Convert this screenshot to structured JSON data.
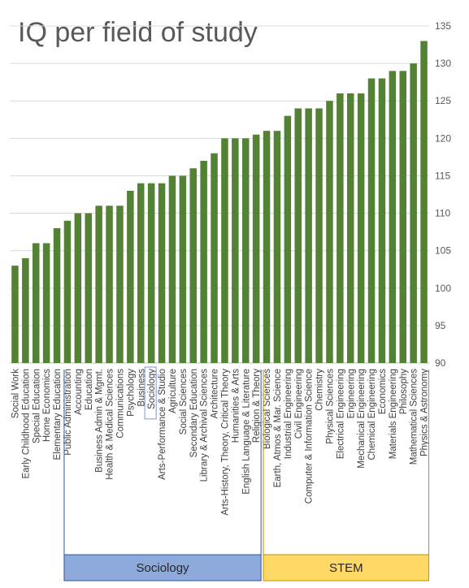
{
  "chart_data": {
    "type": "bar",
    "title": "IQ per field of study",
    "xlabel": "",
    "ylabel": "",
    "ylim": [
      90,
      135
    ],
    "yticks": [
      90,
      95,
      100,
      105,
      110,
      115,
      120,
      125,
      130,
      135
    ],
    "y_axis_position": "right",
    "grid": true,
    "bar_color": "#548235",
    "categories": [
      "Social Work",
      "Early Childhood Education",
      "Special Education",
      "Home Economics",
      "Elementary Education",
      "Public Administration",
      "Accounting",
      "Education",
      "Business Admin & Mgmt.",
      "Health & Medical Sciences",
      "Communications",
      "Psychology",
      "Business",
      "Sociology",
      "Arts-Performance & Studio",
      "Agriculture",
      "Social Sciences",
      "Secondary Education",
      "Library & Archival Sciences",
      "Architecture",
      "Arts-History, Theory, Critical Theory",
      "Humanities & Arts",
      "English Language & Literature",
      "Religion & Theory",
      "Biological Sciences",
      "Earth, Atmos & Mar. Science",
      "Industrial Engineering",
      "Civil Engineering",
      "Computer & Information Science",
      "Chemistry",
      "Physical Sciences",
      "Electrical Engineering",
      "Engineering",
      "Mechanical Engineering",
      "Chemical Engineering",
      "Economics",
      "Materials Engineering",
      "Philosophy",
      "Mathematical Sciences",
      "Physics & Astronomy"
    ],
    "values": [
      103,
      104,
      106,
      106,
      108,
      109,
      110,
      110,
      111,
      111,
      111,
      113,
      114,
      114,
      114,
      115,
      115,
      116,
      117,
      118,
      120,
      120,
      120,
      120.5,
      121,
      121,
      123,
      124,
      124,
      124,
      125,
      126,
      126,
      126,
      128,
      128,
      129,
      129,
      130,
      133
    ],
    "highlighted_category": "Sociology",
    "groups": [
      {
        "label": "Sociology",
        "from": "Public Administration",
        "to": "Religion & Theory",
        "color": "#8EA9DB",
        "border": "#2F5597"
      },
      {
        "label": "STEM",
        "from": "Biological Sciences",
        "to": "Physics & Astronomy",
        "color": "#FFD966",
        "border": "#BF9000"
      }
    ]
  }
}
